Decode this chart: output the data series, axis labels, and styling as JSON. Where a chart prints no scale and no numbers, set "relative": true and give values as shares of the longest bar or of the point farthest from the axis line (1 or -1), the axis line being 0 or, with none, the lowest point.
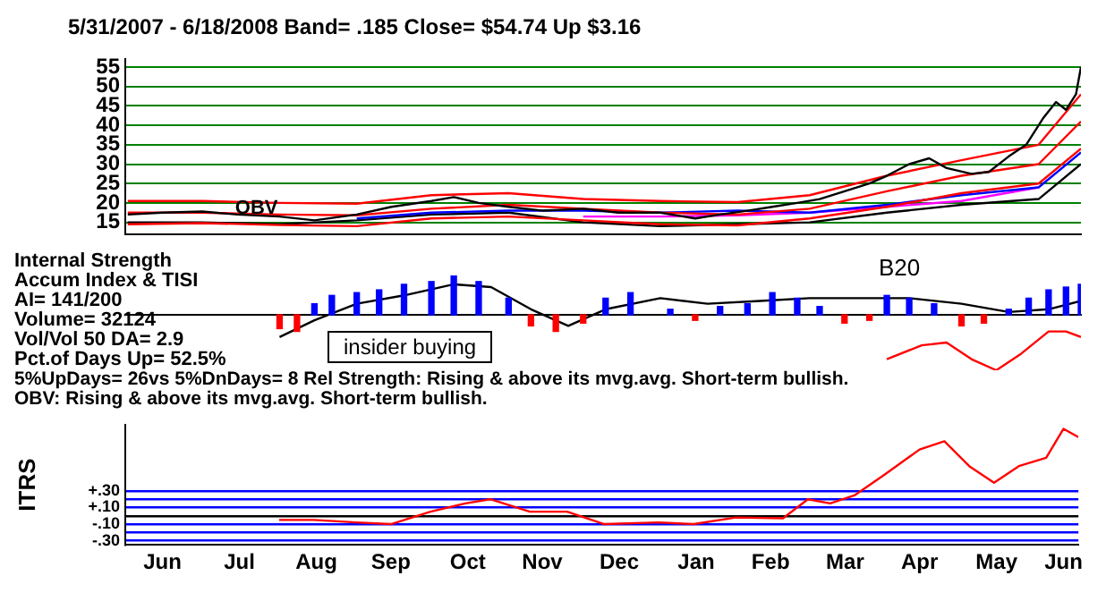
{
  "chart_data": [
    {
      "type": "line",
      "title": "5/31/2007 - 6/18/2008  Band= .185  Close= $54.74  Up $3.16",
      "xlim": [
        "2007-05-31",
        "2008-06-18"
      ],
      "ylim": [
        12,
        57
      ],
      "yticks": [
        15,
        20,
        25,
        30,
        35,
        40,
        45,
        50,
        55
      ],
      "grid": "y",
      "tick_labels": "y",
      "marker": "none",
      "line_style": "solid",
      "x": [
        "2007-06-01",
        "2007-07-01",
        "2007-08-01",
        "2007-09-01",
        "2007-10-01",
        "2007-11-01",
        "2007-12-01",
        "2008-01-01",
        "2008-02-01",
        "2008-03-01",
        "2008-04-01",
        "2008-05-01",
        "2008-06-01",
        "2008-06-18"
      ],
      "series": [
        {
          "color": "#000000",
          "x": [
            "2007-06-01",
            "2007-06-15",
            "2007-07-01",
            "2007-07-15",
            "2007-08-01",
            "2007-08-15",
            "2007-09-01",
            "2007-09-15",
            "2007-10-01",
            "2007-10-10",
            "2007-10-20",
            "2007-11-01",
            "2007-11-15",
            "2007-12-01",
            "2007-12-15",
            "2008-01-01",
            "2008-01-15",
            "2008-01-25",
            "2008-02-05",
            "2008-02-15",
            "2008-02-25",
            "2008-03-05",
            "2008-03-15",
            "2008-03-25",
            "2008-04-01",
            "2008-04-10",
            "2008-04-18",
            "2008-04-25",
            "2008-05-05",
            "2008-05-12",
            "2008-05-20",
            "2008-05-27",
            "2008-06-03",
            "2008-06-08",
            "2008-06-12",
            "2008-06-16",
            "2008-06-18"
          ],
          "values": [
            17,
            17.5,
            17.8,
            17,
            16.5,
            15.5,
            17,
            19,
            20.5,
            21.5,
            20,
            19,
            18,
            18.5,
            17.5,
            17.5,
            16,
            17,
            18,
            19,
            20,
            21,
            23,
            25,
            27,
            30,
            31.5,
            29,
            27.5,
            28,
            32,
            35,
            42,
            46,
            44,
            48,
            55
          ]
        },
        {
          "color": "#ff0000",
          "values": [
            20.5,
            20.5,
            20,
            19.8,
            22,
            22.5,
            21,
            20.5,
            20.2,
            22,
            27,
            31,
            35,
            48
          ]
        },
        {
          "color": "#ff0000",
          "values": [
            17.5,
            17.5,
            17,
            16.8,
            18.5,
            19.5,
            18.5,
            17.5,
            17,
            18.5,
            23,
            27,
            30,
            41
          ]
        },
        {
          "color": "#ff0000",
          "values": [
            14.5,
            14.8,
            14.3,
            14,
            16,
            16.5,
            15.5,
            14.5,
            14.2,
            16,
            19,
            22.5,
            25,
            34
          ]
        },
        {
          "color": "#0000ff",
          "values": [
            null,
            null,
            null,
            16,
            17.5,
            18,
            18,
            17.5,
            18,
            17.5,
            19.5,
            22,
            24,
            33
          ]
        },
        {
          "color": "#ff00ff",
          "values": [
            null,
            null,
            null,
            null,
            null,
            null,
            16.5,
            16.5,
            16.8,
            17.5,
            19,
            20.5,
            24,
            null
          ]
        },
        {
          "name": "OBV",
          "color": "#000000",
          "values": [
            15,
            15,
            14.5,
            15.5,
            17,
            17.5,
            15,
            14,
            14.5,
            15,
            17.5,
            19.5,
            21,
            30
          ]
        }
      ]
    },
    {
      "type": "bar",
      "relative": true,
      "xlim": [
        "2007-05-31",
        "2008-06-18"
      ],
      "tick_labels": false,
      "annotations": [
        "Internal Strength",
        "Accum Index & TISI",
        "AI= 141/200",
        "Volume= 32124",
        "Vol/Vol 50 DA= 2.9",
        "Pct.of Days Up= 52.5%",
        "insider buying",
        "B20",
        "5%UpDays= 26vs 5%DnDays= 8   Rel Strength: Rising & above its mvg.avg. Short-term bullish.",
        "OBV: Rising & above its mvg.avg. Short-term bullish."
      ],
      "series": [
        {
          "type": "bar",
          "x": [
            "2007-08-01",
            "2007-08-08",
            "2007-08-15",
            "2007-08-22",
            "2007-09-01",
            "2007-09-10",
            "2007-09-20",
            "2007-10-01",
            "2007-10-10",
            "2007-10-20",
            "2007-11-01",
            "2007-11-10",
            "2007-11-20",
            "2007-12-01",
            "2007-12-10",
            "2007-12-20",
            "2008-01-05",
            "2008-01-15",
            "2008-01-25",
            "2008-02-05",
            "2008-02-15",
            "2008-02-25",
            "2008-03-05",
            "2008-03-15",
            "2008-03-25",
            "2008-04-01",
            "2008-04-10",
            "2008-04-20",
            "2008-05-01",
            "2008-05-10",
            "2008-05-20",
            "2008-05-28",
            "2008-06-05",
            "2008-06-12",
            "2008-06-18"
          ],
          "values": [
            -0.25,
            -0.3,
            0.2,
            0.35,
            0.4,
            0.45,
            0.55,
            0.6,
            0.7,
            0.6,
            0.3,
            -0.2,
            -0.3,
            -0.15,
            0.3,
            0.4,
            0.1,
            -0.1,
            0.15,
            0.2,
            0.4,
            0.3,
            0.15,
            -0.15,
            -0.1,
            0.35,
            0.3,
            0.2,
            -0.2,
            -0.15,
            0.1,
            0.3,
            0.45,
            0.5,
            0.55
          ],
          "colors": [
            "#ff0000",
            "#ff0000",
            "#0000ff",
            "#0000ff",
            "#0000ff",
            "#0000ff",
            "#0000ff",
            "#0000ff",
            "#0000ff",
            "#0000ff",
            "#0000ff",
            "#ff0000",
            "#ff0000",
            "#ff0000",
            "#0000ff",
            "#0000ff",
            "#0000ff",
            "#ff0000",
            "#0000ff",
            "#0000ff",
            "#0000ff",
            "#0000ff",
            "#0000ff",
            "#ff0000",
            "#ff0000",
            "#0000ff",
            "#0000ff",
            "#0000ff",
            "#ff0000",
            "#ff0000",
            "#0000ff",
            "#0000ff",
            "#0000ff",
            "#0000ff",
            "#0000ff"
          ]
        },
        {
          "type": "line",
          "color": "#000000",
          "x": [
            "2007-08-01",
            "2007-08-15",
            "2007-09-01",
            "2007-09-20",
            "2007-10-10",
            "2007-10-25",
            "2007-11-10",
            "2007-11-25",
            "2007-12-10",
            "2008-01-01",
            "2008-01-20",
            "2008-02-10",
            "2008-03-01",
            "2008-03-20",
            "2008-04-10",
            "2008-05-01",
            "2008-05-20",
            "2008-06-05",
            "2008-06-18"
          ],
          "values": [
            -0.4,
            -0.1,
            0.2,
            0.35,
            0.55,
            0.5,
            0.1,
            -0.2,
            0.1,
            0.3,
            0.2,
            0.25,
            0.3,
            0.3,
            0.3,
            0.2,
            0.05,
            0.1,
            0.25
          ]
        },
        {
          "type": "line",
          "color": "#ff0000",
          "x": [
            "2008-04-01",
            "2008-04-15",
            "2008-04-25",
            "2008-05-05",
            "2008-05-15",
            "2008-05-25",
            "2008-06-05",
            "2008-06-12",
            "2008-06-18"
          ],
          "values": [
            -0.8,
            -0.55,
            -0.5,
            -0.8,
            -1,
            -0.7,
            -0.3,
            -0.3,
            -0.4
          ]
        }
      ]
    },
    {
      "type": "line",
      "ylabel": "ITRS",
      "xlim": [
        "2007-05-31",
        "2008-06-18"
      ],
      "ylim": [
        -0.35,
        1.1
      ],
      "yticks": [
        {
          "value": 0.3,
          "label": "+.30"
        },
        {
          "value": 0.2,
          "label": null
        },
        {
          "value": 0.1,
          "label": "+.10"
        },
        {
          "value": 0,
          "label": null
        },
        {
          "value": -0.1,
          "label": "-.10"
        },
        {
          "value": -0.2,
          "label": null
        },
        {
          "value": -0.3,
          "label": "-.30"
        }
      ],
      "xticks": [
        {
          "value": "2007-06-15",
          "label": "Jun"
        },
        {
          "value": "2007-07-16",
          "label": "Jul"
        },
        {
          "value": "2007-08-16",
          "label": "Aug"
        },
        {
          "value": "2007-09-15",
          "label": "Sep"
        },
        {
          "value": "2007-10-16",
          "label": "Oct"
        },
        {
          "value": "2007-11-15",
          "label": "Nov"
        },
        {
          "value": "2007-12-16",
          "label": "Dec"
        },
        {
          "value": "2008-01-16",
          "label": "Jan"
        },
        {
          "value": "2008-02-15",
          "label": "Feb"
        },
        {
          "value": "2008-03-16",
          "label": "Mar"
        },
        {
          "value": "2008-04-15",
          "label": "Apr"
        },
        {
          "value": "2008-05-16",
          "label": "May"
        },
        {
          "value": "2008-06-12",
          "label": "Jun"
        }
      ],
      "grid": "y",
      "marker": "none",
      "x": [
        "2007-08-01",
        "2007-08-15",
        "2007-09-01",
        "2007-09-15",
        "2007-10-01",
        "2007-10-15",
        "2007-10-25",
        "2007-11-10",
        "2007-11-25",
        "2007-12-10",
        "2008-01-01",
        "2008-01-15",
        "2008-02-01",
        "2008-02-20",
        "2008-03-01",
        "2008-03-10",
        "2008-03-20",
        "2008-04-01",
        "2008-04-15",
        "2008-04-25",
        "2008-05-05",
        "2008-05-15",
        "2008-05-25",
        "2008-06-05",
        "2008-06-12",
        "2008-06-18"
      ],
      "series": [
        {
          "color": "#ff0000",
          "values": [
            -0.05,
            -0.05,
            -0.08,
            -0.1,
            0.05,
            0.15,
            0.2,
            0.05,
            0.05,
            -0.1,
            -0.08,
            -0.1,
            -0.02,
            -0.03,
            0.2,
            0.15,
            0.25,
            0.5,
            0.8,
            0.9,
            0.6,
            0.4,
            0.6,
            0.7,
            1.05,
            0.95
          ]
        }
      ]
    }
  ]
}
